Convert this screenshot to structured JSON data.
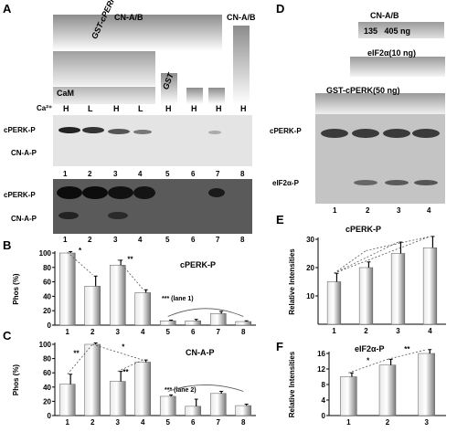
{
  "panels": {
    "A": {
      "letter": "A",
      "header_cna_b": "CN-A/B",
      "header_cna_b_right": "CN-A/B",
      "gst_cperk": "GST-cPERK",
      "gst": "GST",
      "cam": "CaM",
      "ca": "Ca²⁺",
      "ca_levels": [
        "H",
        "L",
        "H",
        "L",
        "H",
        "H",
        "H",
        "H"
      ],
      "row_labels_top": [
        "cPERK-P",
        "CN-A-P"
      ],
      "row_labels_bottom": [
        "cPERK-P",
        "CN-A-P"
      ],
      "lanes": [
        "1",
        "2",
        "3",
        "4",
        "5",
        "6",
        "7",
        "8"
      ]
    },
    "B": {
      "letter": "B",
      "title": "cPERK-P",
      "ylabel": "Phos (%)",
      "note": "*** (lane 1)",
      "sig": [
        "*",
        "**"
      ]
    },
    "C": {
      "letter": "C",
      "title": "CN-A-P",
      "ylabel": "Phos (%)",
      "note": "*** (lane 2)",
      "sig": [
        "**",
        "*",
        "**"
      ]
    },
    "D": {
      "letter": "D",
      "cna_b": "CN-A/B",
      "amounts": "135   405 ng",
      "eif2a": "eIF2α(10 ng)",
      "gst_cperk": "GST-cPERK(50 ng)",
      "row_labels": [
        "cPERK-P",
        "eIF2α-P"
      ],
      "lanes": [
        "1",
        "2",
        "3",
        "4"
      ]
    },
    "E": {
      "letter": "E",
      "title": "cPERK-P",
      "ylabel": "Relative Intensities"
    },
    "F": {
      "letter": "F",
      "title": "eIF2α-P",
      "ylabel": "Relative Intensities",
      "sig": [
        "*",
        "**"
      ]
    }
  },
  "chart_data": [
    {
      "id": "B",
      "type": "bar",
      "title": "cPERK-P",
      "ylabel": "Phos (%)",
      "categories": [
        "1",
        "2",
        "3",
        "4",
        "5",
        "6",
        "7",
        "8"
      ],
      "values": [
        100,
        54,
        83,
        45,
        6,
        6,
        16,
        5
      ],
      "errors": [
        2,
        14,
        7,
        4,
        1,
        2,
        3,
        1
      ],
      "ylim": [
        0,
        100
      ],
      "yticks": [
        0,
        20,
        40,
        60,
        80,
        100
      ]
    },
    {
      "id": "C",
      "type": "bar",
      "title": "CN-A-P",
      "ylabel": "Phos (%)",
      "categories": [
        "1",
        "2",
        "3",
        "4",
        "5",
        "6",
        "7",
        "8"
      ],
      "values": [
        44,
        100,
        48,
        75,
        27,
        13,
        31,
        14
      ],
      "errors": [
        14,
        2,
        14,
        3,
        2,
        10,
        3,
        2
      ],
      "ylim": [
        0,
        100
      ],
      "yticks": [
        0,
        20,
        40,
        60,
        80,
        100
      ]
    },
    {
      "id": "E",
      "type": "bar",
      "title": "cPERK-P",
      "ylabel": "Relative Intensities",
      "categories": [
        "1",
        "2",
        "3",
        "4"
      ],
      "values": [
        15,
        20,
        25,
        27
      ],
      "errors": [
        3,
        2,
        4,
        4
      ],
      "ylim": [
        0,
        30
      ],
      "yticks": [
        10,
        20,
        30
      ]
    },
    {
      "id": "F",
      "type": "bar",
      "title": "eIF2α-P",
      "ylabel": "Relative Intensities",
      "categories": [
        "1",
        "2",
        "3"
      ],
      "values": [
        10,
        13,
        16
      ],
      "errors": [
        1,
        1.5,
        1
      ],
      "ylim": [
        0,
        16
      ],
      "yticks": [
        0,
        4,
        8,
        12,
        16
      ]
    }
  ]
}
